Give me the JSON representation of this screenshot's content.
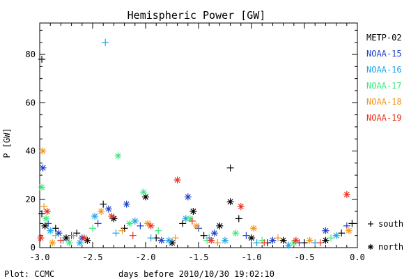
{
  "chart_data": {
    "type": "scatter",
    "title": "Hemispheric Power [GW]",
    "xlabel": "days before 2010/10/30 19:02:10",
    "ylabel": "P [GW]",
    "xlim": [
      -3.0,
      0.0
    ],
    "ylim": [
      0,
      93
    ],
    "x_ticks": [
      -3.0,
      -2.5,
      -2.0,
      -1.5,
      -1.0,
      -0.5,
      0.0
    ],
    "x_tick_labels": [
      "-3.0",
      "-2.5",
      "-2.0",
      "-1.5",
      "-1.0",
      "-0.5",
      "0.0"
    ],
    "y_ticks": [
      0,
      20,
      40,
      60,
      80
    ],
    "y_tick_labels": [
      "0",
      "20",
      "40",
      "60",
      "80"
    ],
    "grid": false,
    "legend_placement": "right",
    "hemisphere_legend": {
      "south": {
        "symbol": "+",
        "label": "south"
      },
      "north": {
        "symbol": "*",
        "label": "north"
      }
    },
    "footer": "Plot: CCMC",
    "series": [
      {
        "name": "METP-02",
        "color": "#000000",
        "points": [
          {
            "x": -2.98,
            "y": 78,
            "h": "south"
          },
          {
            "x": -2.98,
            "y": 14,
            "h": "south"
          },
          {
            "x": -2.95,
            "y": 9,
            "h": "north"
          },
          {
            "x": -2.85,
            "y": 8,
            "h": "south"
          },
          {
            "x": -2.75,
            "y": 4,
            "h": "north"
          },
          {
            "x": -2.65,
            "y": 6,
            "h": "south"
          },
          {
            "x": -2.55,
            "y": 3,
            "h": "north"
          },
          {
            "x": -2.4,
            "y": 18,
            "h": "south"
          },
          {
            "x": -2.3,
            "y": 12,
            "h": "north"
          },
          {
            "x": -2.2,
            "y": 8,
            "h": "south"
          },
          {
            "x": -2.0,
            "y": 21,
            "h": "north"
          },
          {
            "x": -1.9,
            "y": 4,
            "h": "south"
          },
          {
            "x": -1.75,
            "y": 2,
            "h": "north"
          },
          {
            "x": -1.65,
            "y": 10,
            "h": "south"
          },
          {
            "x": -1.55,
            "y": 15,
            "h": "north"
          },
          {
            "x": -1.45,
            "y": 5,
            "h": "south"
          },
          {
            "x": -1.3,
            "y": 9,
            "h": "north"
          },
          {
            "x": -1.2,
            "y": 33,
            "h": "south"
          },
          {
            "x": -1.2,
            "y": 19,
            "h": "north"
          },
          {
            "x": -1.12,
            "y": 12,
            "h": "south"
          },
          {
            "x": -1.0,
            "y": 4,
            "h": "north"
          },
          {
            "x": -0.85,
            "y": 2,
            "h": "south"
          },
          {
            "x": -0.7,
            "y": 3,
            "h": "north"
          },
          {
            "x": -0.5,
            "y": 2,
            "h": "south"
          },
          {
            "x": -0.3,
            "y": 3,
            "h": "north"
          },
          {
            "x": -0.15,
            "y": 6,
            "h": "south"
          },
          {
            "x": -0.05,
            "y": 10,
            "h": "south"
          }
        ]
      },
      {
        "name": "NOAA-15",
        "color": "#1c3fc9",
        "points": [
          {
            "x": -2.97,
            "y": 33,
            "h": "north"
          },
          {
            "x": -2.92,
            "y": 10,
            "h": "south"
          },
          {
            "x": -2.82,
            "y": 6,
            "h": "north"
          },
          {
            "x": -2.7,
            "y": 5,
            "h": "south"
          },
          {
            "x": -2.6,
            "y": 4,
            "h": "north"
          },
          {
            "x": -2.45,
            "y": 10,
            "h": "south"
          },
          {
            "x": -2.35,
            "y": 16,
            "h": "north"
          },
          {
            "x": -2.18,
            "y": 18,
            "h": "north"
          },
          {
            "x": -2.05,
            "y": 9,
            "h": "south"
          },
          {
            "x": -1.85,
            "y": 3,
            "h": "north"
          },
          {
            "x": -1.6,
            "y": 21,
            "h": "north"
          },
          {
            "x": -1.5,
            "y": 8,
            "h": "south"
          },
          {
            "x": -1.35,
            "y": 6,
            "h": "north"
          },
          {
            "x": -1.05,
            "y": 5,
            "h": "south"
          },
          {
            "x": -0.8,
            "y": 3,
            "h": "north"
          },
          {
            "x": -0.55,
            "y": 2,
            "h": "south"
          },
          {
            "x": -0.3,
            "y": 7,
            "h": "north"
          },
          {
            "x": -0.1,
            "y": 9,
            "h": "south"
          }
        ]
      },
      {
        "name": "NOAA-16",
        "color": "#1ea6e6",
        "points": [
          {
            "x": -2.38,
            "y": 85,
            "h": "south"
          },
          {
            "x": -2.9,
            "y": 7,
            "h": "north"
          },
          {
            "x": -2.78,
            "y": 3,
            "h": "south"
          },
          {
            "x": -2.62,
            "y": 2,
            "h": "north"
          },
          {
            "x": -2.48,
            "y": 13,
            "h": "north"
          },
          {
            "x": -2.28,
            "y": 6,
            "h": "south"
          },
          {
            "x": -2.1,
            "y": 11,
            "h": "north"
          },
          {
            "x": -1.95,
            "y": 4,
            "h": "south"
          },
          {
            "x": -1.78,
            "y": 3,
            "h": "north"
          },
          {
            "x": -1.62,
            "y": 12,
            "h": "north"
          },
          {
            "x": -1.4,
            "y": 4,
            "h": "south"
          },
          {
            "x": -1.25,
            "y": 3,
            "h": "north"
          },
          {
            "x": -0.95,
            "y": 2,
            "h": "south"
          },
          {
            "x": -0.65,
            "y": 1,
            "h": "north"
          },
          {
            "x": -0.4,
            "y": 2,
            "h": "south"
          },
          {
            "x": -0.2,
            "y": 5,
            "h": "north"
          }
        ]
      },
      {
        "name": "NOAA-17",
        "color": "#3cea7a",
        "points": [
          {
            "x": -2.98,
            "y": 25,
            "h": "north"
          },
          {
            "x": -2.94,
            "y": 12,
            "h": "north"
          },
          {
            "x": -2.26,
            "y": 38,
            "h": "north"
          },
          {
            "x": -2.85,
            "y": 5,
            "h": "south"
          },
          {
            "x": -2.72,
            "y": 2,
            "h": "north"
          },
          {
            "x": -2.5,
            "y": 8,
            "h": "south"
          },
          {
            "x": -2.15,
            "y": 10,
            "h": "north"
          },
          {
            "x": -2.02,
            "y": 23,
            "h": "north"
          },
          {
            "x": -1.88,
            "y": 7,
            "h": "south"
          },
          {
            "x": -1.58,
            "y": 12,
            "h": "north"
          },
          {
            "x": -1.42,
            "y": 3,
            "h": "south"
          },
          {
            "x": -1.15,
            "y": 6,
            "h": "north"
          },
          {
            "x": -0.9,
            "y": 3,
            "h": "south"
          },
          {
            "x": -0.6,
            "y": 2,
            "h": "north"
          },
          {
            "x": -0.25,
            "y": 4,
            "h": "south"
          }
        ]
      },
      {
        "name": "NOAA-18",
        "color": "#f0961e",
        "points": [
          {
            "x": -2.97,
            "y": 40,
            "h": "north"
          },
          {
            "x": -2.96,
            "y": 17,
            "h": "south"
          },
          {
            "x": -2.88,
            "y": 2,
            "h": "north"
          },
          {
            "x": -2.68,
            "y": 5,
            "h": "south"
          },
          {
            "x": -2.42,
            "y": 15,
            "h": "north"
          },
          {
            "x": -2.22,
            "y": 7,
            "h": "south"
          },
          {
            "x": -1.98,
            "y": 10,
            "h": "north"
          },
          {
            "x": -1.72,
            "y": 4,
            "h": "south"
          },
          {
            "x": -1.52,
            "y": 9,
            "h": "north"
          },
          {
            "x": -1.32,
            "y": 2,
            "h": "south"
          },
          {
            "x": -0.98,
            "y": 8,
            "h": "north"
          },
          {
            "x": -0.75,
            "y": 4,
            "h": "south"
          },
          {
            "x": -0.45,
            "y": 3,
            "h": "north"
          },
          {
            "x": -0.08,
            "y": 7,
            "h": "north"
          }
        ]
      },
      {
        "name": "NOAA-19",
        "color": "#e8321e",
        "points": [
          {
            "x": -2.99,
            "y": 4,
            "h": "north"
          },
          {
            "x": -2.93,
            "y": 15,
            "h": "north"
          },
          {
            "x": -2.8,
            "y": 3,
            "h": "south"
          },
          {
            "x": -2.58,
            "y": 4,
            "h": "north"
          },
          {
            "x": -2.32,
            "y": 13,
            "h": "north"
          },
          {
            "x": -2.12,
            "y": 5,
            "h": "south"
          },
          {
            "x": -1.95,
            "y": 9,
            "h": "north"
          },
          {
            "x": -1.7,
            "y": 28,
            "h": "north"
          },
          {
            "x": -1.56,
            "y": 11,
            "h": "south"
          },
          {
            "x": -1.38,
            "y": 3,
            "h": "north"
          },
          {
            "x": -1.1,
            "y": 17,
            "h": "north"
          },
          {
            "x": -0.88,
            "y": 2,
            "h": "south"
          },
          {
            "x": -0.58,
            "y": 3,
            "h": "north"
          },
          {
            "x": -0.35,
            "y": 2,
            "h": "south"
          },
          {
            "x": -0.1,
            "y": 22,
            "h": "north"
          }
        ]
      }
    ]
  }
}
